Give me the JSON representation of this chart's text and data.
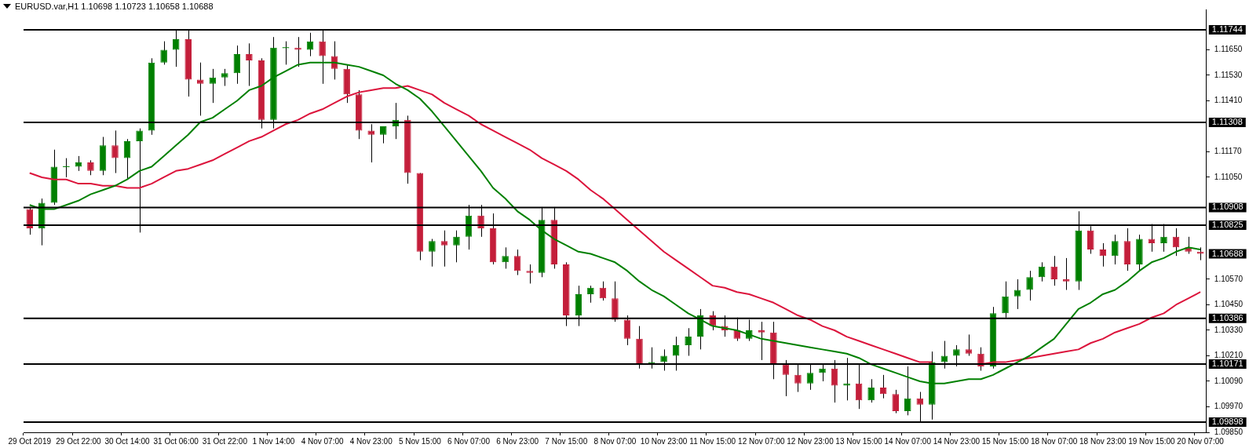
{
  "chart_data": {
    "type": "candlestick",
    "title": "EURUSD.var,H1  1.10698 1.10723 1.10658 1.10688",
    "categories": [
      "29 Oct 2019",
      null,
      null,
      null,
      "29 Oct 22:00",
      null,
      null,
      null,
      "30 Oct 14:00",
      null,
      null,
      null,
      "31 Oct 06:00",
      null,
      null,
      null,
      "31 Oct 22:00",
      null,
      null,
      null,
      "1 Nov 14:00",
      null,
      null,
      null,
      "4 Nov 07:00",
      null,
      null,
      null,
      "4 Nov 23:00",
      null,
      null,
      null,
      "5 Nov 15:00",
      null,
      null,
      null,
      "6 Nov 07:00",
      null,
      null,
      null,
      "6 Nov 23:00",
      null,
      null,
      null,
      "7 Nov 15:00",
      null,
      null,
      null,
      "8 Nov 07:00",
      null,
      null,
      null,
      "10 Nov 23:00",
      null,
      null,
      null,
      "11 Nov 15:00",
      null,
      null,
      null,
      "12 Nov 07:00",
      null,
      null,
      null,
      "12 Nov 23:00",
      null,
      null,
      null,
      "13 Nov 15:00",
      null,
      null,
      null,
      "14 Nov 07:00",
      null,
      null,
      null,
      "14 Nov 23:00",
      null,
      null,
      null,
      "15 Nov 15:00",
      null,
      null,
      null,
      "18 Nov 07:00",
      null,
      null,
      null,
      "18 Nov 23:00",
      null,
      null,
      null,
      "19 Nov 15:00",
      null,
      null,
      null,
      "20 Nov 07:00"
    ],
    "ohlc": [
      [
        1.109,
        1.1091,
        1.1078,
        1.1081
      ],
      [
        1.1081,
        1.1095,
        1.1073,
        1.1093
      ],
      [
        1.1093,
        1.1118,
        1.1092,
        1.111
      ],
      [
        1.111,
        1.1114,
        1.1105,
        1.111
      ],
      [
        1.111,
        1.1115,
        1.1108,
        1.1112
      ],
      [
        1.1112,
        1.1113,
        1.1106,
        1.1108
      ],
      [
        1.1108,
        1.1124,
        1.1106,
        1.112
      ],
      [
        1.112,
        1.1127,
        1.1107,
        1.1114
      ],
      [
        1.1114,
        1.1123,
        1.1104,
        1.1122
      ],
      [
        1.1122,
        1.1128,
        1.1079,
        1.1127
      ],
      [
        1.1127,
        1.1161,
        1.1125,
        1.1159
      ],
      [
        1.1159,
        1.1169,
        1.1158,
        1.1165
      ],
      [
        1.1165,
        1.1174,
        1.1157,
        1.117
      ],
      [
        1.117,
        1.1174,
        1.1143,
        1.1151
      ],
      [
        1.1151,
        1.1159,
        1.1134,
        1.1149
      ],
      [
        1.1149,
        1.1156,
        1.114,
        1.1152
      ],
      [
        1.1152,
        1.1156,
        1.1148,
        1.1154
      ],
      [
        1.1154,
        1.1167,
        1.1149,
        1.1163
      ],
      [
        1.1163,
        1.1168,
        1.1148,
        1.116
      ],
      [
        1.116,
        1.1161,
        1.1128,
        1.1132
      ],
      [
        1.1132,
        1.1171,
        1.1128,
        1.1166
      ],
      [
        1.1166,
        1.1169,
        1.1158,
        1.1166
      ],
      [
        1.1166,
        1.1171,
        1.1157,
        1.1165
      ],
      [
        1.1165,
        1.1173,
        1.1162,
        1.1169
      ],
      [
        1.1169,
        1.1174,
        1.1149,
        1.1162
      ],
      [
        1.1162,
        1.1169,
        1.1151,
        1.1156
      ],
      [
        1.1156,
        1.1158,
        1.114,
        1.1144
      ],
      [
        1.1144,
        1.1146,
        1.1123,
        1.1127
      ],
      [
        1.1127,
        1.113,
        1.1112,
        1.1125
      ],
      [
        1.1125,
        1.1129,
        1.1121,
        1.1129
      ],
      [
        1.1129,
        1.114,
        1.1123,
        1.1132
      ],
      [
        1.1132,
        1.1134,
        1.1102,
        1.1107
      ],
      [
        1.1107,
        1.1107,
        1.1066,
        1.107
      ],
      [
        1.107,
        1.1076,
        1.1063,
        1.1075
      ],
      [
        1.1075,
        1.108,
        1.1063,
        1.1073
      ],
      [
        1.1073,
        1.108,
        1.1065,
        1.1077
      ],
      [
        1.1077,
        1.1092,
        1.1071,
        1.1087
      ],
      [
        1.1087,
        1.1092,
        1.1077,
        1.1081
      ],
      [
        1.1081,
        1.1088,
        1.1064,
        1.1065
      ],
      [
        1.1065,
        1.1072,
        1.1062,
        1.1068
      ],
      [
        1.1068,
        1.1071,
        1.1059,
        1.1061
      ],
      [
        1.1061,
        1.1064,
        1.1055,
        1.106
      ],
      [
        1.106,
        1.1091,
        1.1058,
        1.1085
      ],
      [
        1.1085,
        1.1091,
        1.1062,
        1.1064
      ],
      [
        1.1064,
        1.1065,
        1.1035,
        1.104
      ],
      [
        1.104,
        1.1054,
        1.1035,
        1.105
      ],
      [
        1.105,
        1.1054,
        1.1046,
        1.1053
      ],
      [
        1.1053,
        1.1056,
        1.1047,
        1.1048
      ],
      [
        1.1048,
        1.1056,
        1.1037,
        1.1038
      ],
      [
        1.1038,
        1.104,
        1.1026,
        1.1029
      ],
      [
        1.1029,
        1.1035,
        1.1015,
        1.1017
      ],
      [
        1.1017,
        1.1025,
        1.1015,
        1.1018
      ],
      [
        1.1018,
        1.1024,
        1.1014,
        1.1021
      ],
      [
        1.1021,
        1.103,
        1.1014,
        1.1026
      ],
      [
        1.1026,
        1.1034,
        1.1021,
        1.103
      ],
      [
        1.103,
        1.1043,
        1.1024,
        1.104
      ],
      [
        1.104,
        1.1042,
        1.1033,
        1.1035
      ],
      [
        1.1035,
        1.104,
        1.103,
        1.1033
      ],
      [
        1.1033,
        1.1039,
        1.1028,
        1.1029
      ],
      [
        1.1029,
        1.1038,
        1.1028,
        1.1033
      ],
      [
        1.1033,
        1.1037,
        1.1019,
        1.1032
      ],
      [
        1.1032,
        1.1037,
        1.101,
        1.1017
      ],
      [
        1.1017,
        1.1019,
        1.1002,
        1.1012
      ],
      [
        1.1012,
        1.1017,
        1.1004,
        1.1008
      ],
      [
        1.1008,
        1.1017,
        1.1005,
        1.1013
      ],
      [
        1.1013,
        1.1017,
        1.1009,
        1.1015
      ],
      [
        1.1015,
        1.1019,
        1.0999,
        1.1007
      ],
      [
        1.1007,
        1.102,
        1.1,
        1.1008
      ],
      [
        1.1008,
        1.1017,
        1.0996,
        1.1
      ],
      [
        1.1,
        1.101,
        1.0999,
        1.1006
      ],
      [
        1.1006,
        1.1012,
        1.1001,
        1.1003
      ],
      [
        1.1003,
        1.1005,
        1.0994,
        1.0995
      ],
      [
        1.0995,
        1.1016,
        1.0993,
        1.1001
      ],
      [
        1.1001,
        1.1004,
        1.099,
        1.0998
      ],
      [
        1.0998,
        1.1023,
        1.0991,
        1.1018
      ],
      [
        1.1018,
        1.1028,
        1.1015,
        1.1021
      ],
      [
        1.1021,
        1.1026,
        1.1016,
        1.1024
      ],
      [
        1.1024,
        1.1031,
        1.1021,
        1.1022
      ],
      [
        1.1022,
        1.1025,
        1.1014,
        1.1016
      ],
      [
        1.1016,
        1.1044,
        1.1015,
        1.1041
      ],
      [
        1.1041,
        1.1056,
        1.1039,
        1.1049
      ],
      [
        1.1049,
        1.1057,
        1.1043,
        1.1052
      ],
      [
        1.1052,
        1.1061,
        1.1047,
        1.1058
      ],
      [
        1.1058,
        1.1065,
        1.1056,
        1.1063
      ],
      [
        1.1063,
        1.1068,
        1.1054,
        1.1057
      ],
      [
        1.1057,
        1.1067,
        1.1052,
        1.1056
      ],
      [
        1.1056,
        1.1089,
        1.1052,
        1.108
      ],
      [
        1.108,
        1.1082,
        1.1069,
        1.1071
      ],
      [
        1.1071,
        1.1074,
        1.1063,
        1.1068
      ],
      [
        1.1068,
        1.1078,
        1.1064,
        1.1075
      ],
      [
        1.1075,
        1.1081,
        1.1061,
        1.1064
      ],
      [
        1.1064,
        1.1078,
        1.1061,
        1.1076
      ],
      [
        1.1076,
        1.1083,
        1.107,
        1.1074
      ],
      [
        1.1074,
        1.1083,
        1.107,
        1.1077
      ],
      [
        1.1077,
        1.1081,
        1.1068,
        1.1072
      ],
      [
        1.1072,
        1.1077,
        1.1069,
        1.107
      ],
      [
        1.107,
        1.1072,
        1.1066,
        1.1069
      ]
    ],
    "colors": [
      "#c41e3a",
      "#008000",
      "#008000",
      "#008000",
      "#008000",
      "#c41e3a",
      "#008000",
      "#c41e3a",
      "#008000",
      "#008000",
      "#008000",
      "#008000",
      "#008000",
      "#c41e3a",
      "#c41e3a",
      "#008000",
      "#008000",
      "#008000",
      "#c41e3a",
      "#c41e3a",
      "#008000",
      "#008000",
      "#c41e3a",
      "#008000",
      "#c41e3a",
      "#c41e3a",
      "#c41e3a",
      "#c41e3a",
      "#c41e3a",
      "#008000",
      "#008000",
      "#c41e3a",
      "#c41e3a",
      "#008000",
      "#c41e3a",
      "#008000",
      "#008000",
      "#c41e3a",
      "#c41e3a",
      "#008000",
      "#c41e3a",
      "#c41e3a",
      "#008000",
      "#c41e3a",
      "#c41e3a",
      "#008000",
      "#008000",
      "#c41e3a",
      "#c41e3a",
      "#c41e3a",
      "#c41e3a",
      "#008000",
      "#008000",
      "#008000",
      "#008000",
      "#008000",
      "#c41e3a",
      "#c41e3a",
      "#c41e3a",
      "#008000",
      "#c41e3a",
      "#c41e3a",
      "#c41e3a",
      "#c41e3a",
      "#008000",
      "#008000",
      "#c41e3a",
      "#008000",
      "#c41e3a",
      "#008000",
      "#c41e3a",
      "#c41e3a",
      "#008000",
      "#c41e3a",
      "#008000",
      "#008000",
      "#008000",
      "#c41e3a",
      "#c41e3a",
      "#008000",
      "#008000",
      "#008000",
      "#008000",
      "#008000",
      "#c41e3a",
      "#c41e3a",
      "#008000",
      "#c41e3a",
      "#c41e3a",
      "#008000",
      "#c41e3a",
      "#008000",
      "#c41e3a",
      "#008000",
      "#c41e3a",
      "#c41e3a",
      "#c41e3a"
    ],
    "series": [
      {
        "type": "line",
        "color": "#008000",
        "values": [
          1.1092,
          1.109,
          1.109,
          1.1092,
          1.1094,
          1.1097,
          1.1099,
          1.1101,
          1.1104,
          1.1108,
          1.111,
          1.1115,
          1.112,
          1.1125,
          1.1131,
          1.1133,
          1.1137,
          1.1141,
          1.1146,
          1.1148,
          1.1152,
          1.1155,
          1.1158,
          1.1159,
          1.1159,
          1.1159,
          1.1158,
          1.1157,
          1.1155,
          1.1153,
          1.1149,
          1.1146,
          1.1142,
          1.1136,
          1.1129,
          1.1122,
          1.1115,
          1.1108,
          1.11,
          1.1095,
          1.1089,
          1.1085,
          1.108,
          1.1076,
          1.1073,
          1.107,
          1.1069,
          1.1067,
          1.1065,
          1.1061,
          1.1056,
          1.1052,
          1.1049,
          1.1045,
          1.1041,
          1.1038,
          1.1035,
          1.1034,
          1.1033,
          1.1031,
          1.1029,
          1.1028,
          1.1027,
          1.1026,
          1.1025,
          1.1024,
          1.1023,
          1.1022,
          1.102,
          1.1017,
          1.1015,
          1.1013,
          1.1011,
          1.1009,
          1.1008,
          1.1008,
          1.1009,
          1.101,
          1.101,
          1.1012,
          1.1015,
          1.1018,
          1.1021,
          1.1025,
          1.1029,
          1.1036,
          1.1043,
          1.1046,
          1.105,
          1.1052,
          1.1056,
          1.1061,
          1.1065,
          1.1067,
          1.107,
          1.1072,
          1.1071
        ]
      },
      {
        "type": "line",
        "color": "#dc143c",
        "values": [
          1.1107,
          1.1105,
          1.1104,
          1.1104,
          1.1102,
          1.1102,
          1.1101,
          1.1101,
          1.11,
          1.11,
          1.1102,
          1.1105,
          1.1108,
          1.1109,
          1.1111,
          1.1113,
          1.1116,
          1.1119,
          1.1122,
          1.1124,
          1.1127,
          1.113,
          1.1132,
          1.1135,
          1.1137,
          1.114,
          1.1143,
          1.1145,
          1.1146,
          1.1147,
          1.1147,
          1.1148,
          1.1146,
          1.1144,
          1.114,
          1.1137,
          1.1134,
          1.113,
          1.1127,
          1.1124,
          1.1121,
          1.1118,
          1.1114,
          1.1111,
          1.1108,
          1.1104,
          1.1099,
          1.1095,
          1.109,
          1.1085,
          1.108,
          1.1075,
          1.107,
          1.1066,
          1.1062,
          1.1058,
          1.1054,
          1.1053,
          1.1051,
          1.105,
          1.1048,
          1.1046,
          1.1043,
          1.104,
          1.1038,
          1.1035,
          1.1033,
          1.103,
          1.1028,
          1.1026,
          1.1024,
          1.1022,
          1.102,
          1.1018,
          1.1018,
          null,
          null,
          null,
          1.1017,
          1.1018,
          1.1018,
          1.1019,
          1.102,
          1.1021,
          1.1022,
          1.1023,
          1.1024,
          1.1027,
          1.1029,
          1.1032,
          1.1034,
          1.1036,
          1.1039,
          1.1041,
          1.1045,
          1.1048,
          1.1051
        ]
      }
    ],
    "marker": "none",
    "ylim": [
      1.0985,
      1.1184
    ],
    "yticks": [
      {
        "value": 1.0985,
        "label": "1.09850"
      },
      {
        "value": 1.0997,
        "label": "1.09970"
      },
      {
        "value": 1.1009,
        "label": "1.10090"
      },
      {
        "value": 1.1021,
        "label": "1.10210"
      },
      {
        "value": 1.1033,
        "label": "1.10330"
      },
      {
        "value": 1.1045,
        "label": "1.10450"
      },
      {
        "value": 1.1057,
        "label": "1.10570"
      },
      {
        "value": 1.1105,
        "label": "1.11050"
      },
      {
        "value": 1.1117,
        "label": "1.11170"
      },
      {
        "value": 1.1141,
        "label": "1.11410"
      },
      {
        "value": 1.1153,
        "label": "1.11530"
      },
      {
        "value": 1.1165,
        "label": "1.11650"
      }
    ],
    "ref_lines": [
      {
        "axis": "y",
        "value": 1.11744,
        "label": "1.11744",
        "color": "#000000"
      },
      {
        "axis": "y",
        "value": 1.11308,
        "label": "1.11308",
        "color": "#000000"
      },
      {
        "axis": "y",
        "value": 1.10908,
        "label": "1.10908",
        "color": "#000000"
      },
      {
        "axis": "y",
        "value": 1.10825,
        "label": "1.10825",
        "color": "#000000"
      },
      {
        "axis": "y",
        "value": 1.10386,
        "label": "1.10386",
        "color": "#000000"
      },
      {
        "axis": "y",
        "value": 1.10171,
        "label": "1.10171",
        "color": "#000000"
      },
      {
        "axis": "y",
        "value": 1.09898,
        "label": "1.09898",
        "color": "#000000"
      }
    ],
    "annotations": [
      "1.10688"
    ]
  }
}
